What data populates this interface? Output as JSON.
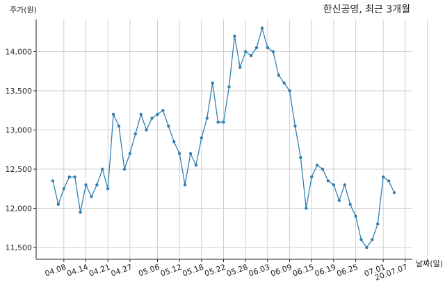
{
  "chart_data": {
    "type": "line",
    "title": "한신공영, 최근 3개월",
    "ylabel": "주가(원)",
    "xlabel": "날짜(일)",
    "ylim": [
      11350,
      14420
    ],
    "yticks": [
      11500,
      12000,
      12500,
      13000,
      13500,
      14000
    ],
    "ytick_labels": [
      "11,500",
      "12,000",
      "12,500",
      "13,000",
      "13,500",
      "14,000"
    ],
    "grid": true,
    "color": "#2f7fb2",
    "x_tick_indices": [
      2,
      6,
      10,
      14,
      19,
      23,
      27,
      31,
      35,
      39,
      43,
      47,
      51,
      55,
      60,
      64,
      68,
      72,
      76
    ],
    "x_tick_labels": [
      "04.08",
      "04.14",
      "04.21",
      "04.27",
      "05.06",
      "05.12",
      "05.18",
      "05.22",
      "05.28",
      "06.03",
      "06.09",
      "06.15",
      "06.19",
      "06.25",
      "07.01",
      "20.07.07"
    ],
    "x_tick_label_indices": [
      2,
      6,
      10,
      14,
      19,
      23,
      27,
      31,
      35,
      39,
      43,
      47,
      51,
      55,
      60,
      64
    ],
    "series": [
      {
        "values": [
          12350,
          12050,
          12250,
          12400,
          12400,
          11950,
          12300,
          12150,
          12300,
          12500,
          12250,
          13200,
          13050,
          12500,
          12700,
          12950,
          13200,
          13000,
          13150,
          13200,
          13250,
          13050,
          12850,
          12700,
          12300,
          12700,
          12550,
          12900,
          13150,
          13600,
          13100,
          13100,
          13550,
          14200,
          13800,
          14000,
          13950,
          14050,
          14300,
          14050,
          14000,
          13700,
          13600,
          13500,
          13050,
          12650,
          12000,
          12400,
          12550,
          12500,
          12350,
          12300,
          12100,
          12300,
          12050,
          11900,
          11600,
          11500,
          11600,
          11800,
          12400,
          12350,
          12200
        ]
      }
    ]
  }
}
